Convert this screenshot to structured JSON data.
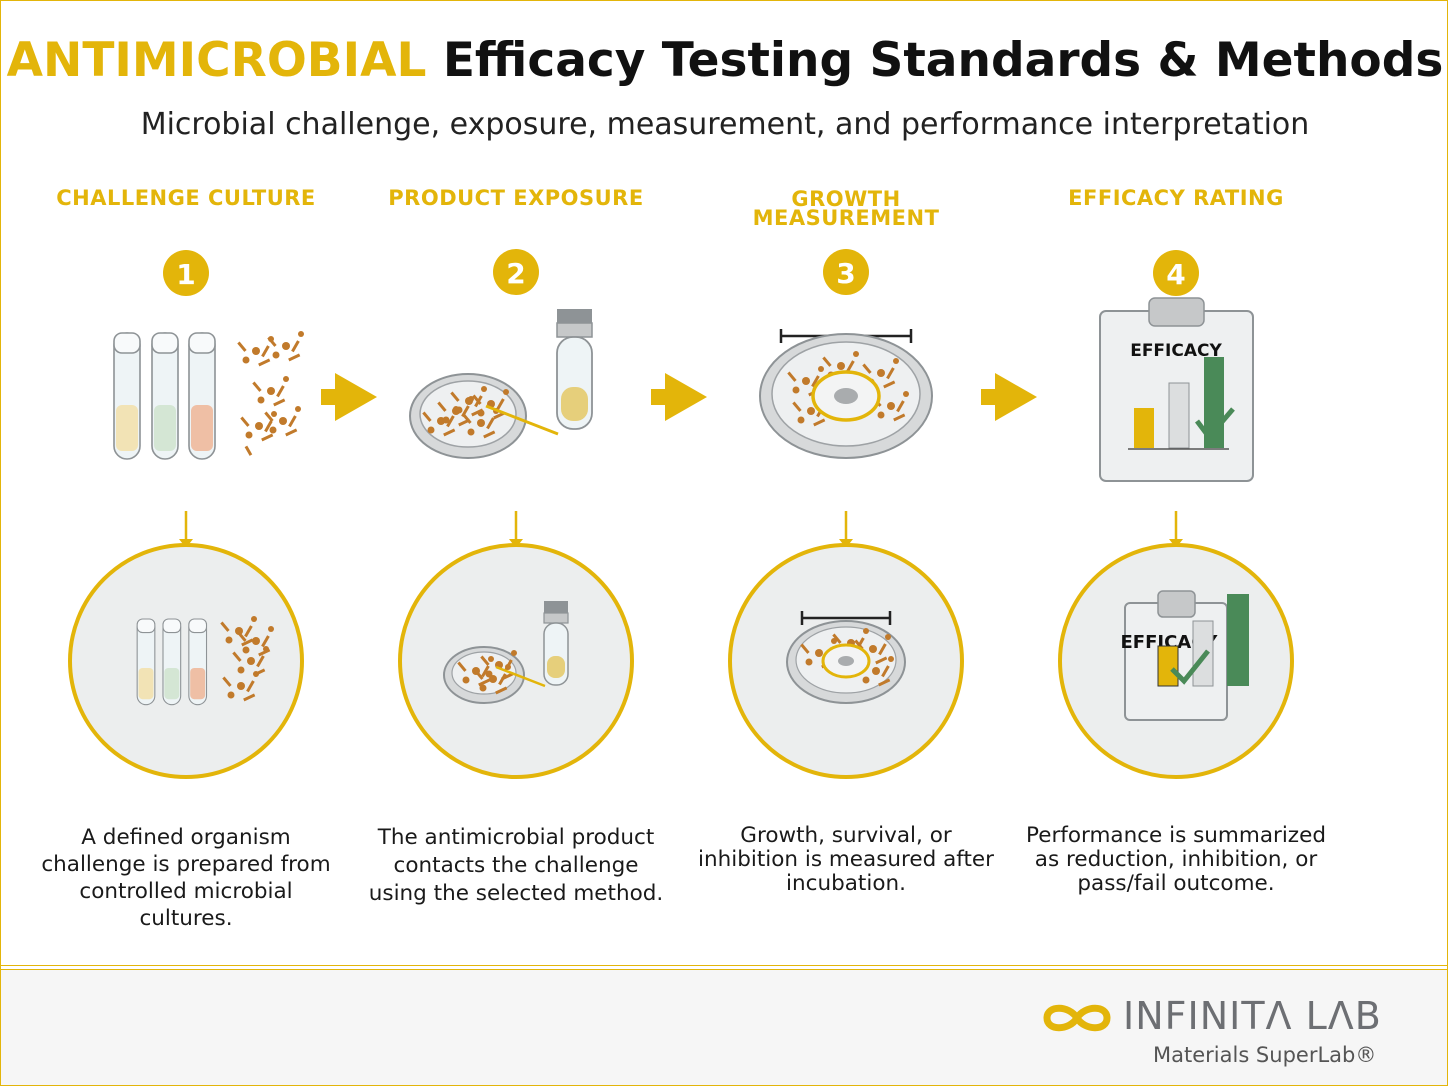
{
  "title": {
    "accent": "ANTIMICROBIAL",
    "main": "Efficacy Testing Standards & Methods"
  },
  "subtitle": "Microbial challenge, exposure, measurement, and performance interpretation",
  "steps": [
    {
      "number": "1",
      "title": "CHALLENGE CULTURE",
      "description": "A defined organism challenge is prepared from controlled microbial cultures."
    },
    {
      "number": "2",
      "title": "PRODUCT EXPOSURE",
      "description": "The antimicrobial product contacts the challenge using the selected method."
    },
    {
      "number": "3",
      "title_line1": "GROWTH",
      "title_line2": "MEASUREMENT",
      "description": "Growth, survival, or inhibition is measured after incubation."
    },
    {
      "number": "4",
      "title": "EFFICACY RATING",
      "description": "Performance is summarized as reduction, inhibition, or pass/fail outcome.",
      "clipboard_label": "EFFICACY",
      "zoom_clipboard_label": "EFFICACY"
    }
  ],
  "brand": {
    "name": "INFINITΛ LΛB",
    "tagline": "Materials SuperLab®"
  },
  "colors": {
    "accent": "#e3b50a",
    "text": "#111111",
    "bacteria": "#c17a2b",
    "green": "#4a8a58",
    "gray": "#c6c8c9"
  }
}
